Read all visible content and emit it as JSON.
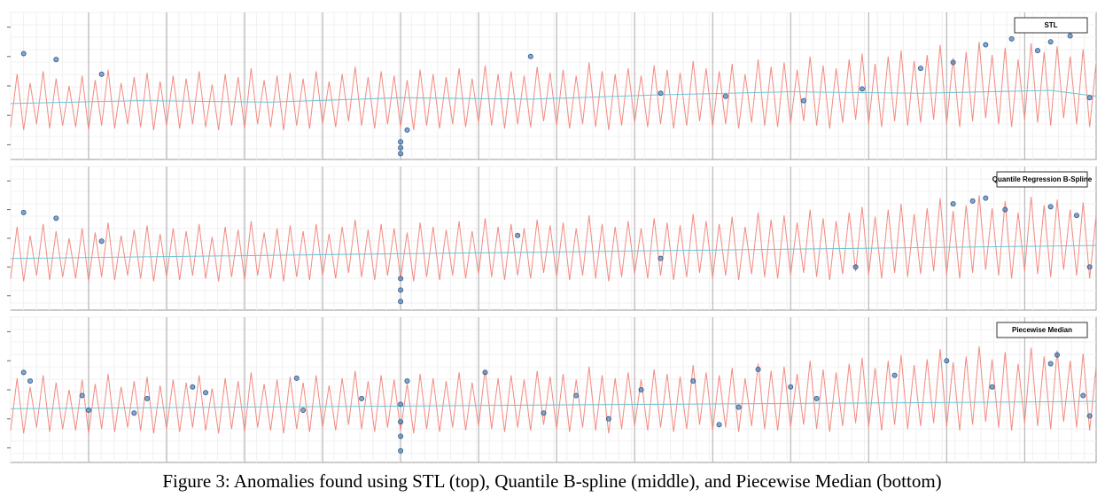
{
  "caption": "Figure 3: Anomalies found using STL (top), Quantile B-spline (middle), and Piecewise Median (bottom)",
  "chart_data": [
    {
      "type": "line",
      "label": "STL",
      "xlim": [
        0,
        167
      ],
      "ylim": [
        0,
        100
      ],
      "xticks": [
        12,
        24,
        36,
        48,
        60,
        72,
        84,
        96,
        108,
        120,
        132,
        144,
        156
      ],
      "yticks": [
        10,
        30,
        50,
        70,
        90
      ],
      "grid": true,
      "series": [
        {
          "color": "#f28b82",
          "values": [
            22,
            58,
            20,
            52,
            24,
            60,
            21,
            55,
            23,
            50,
            22,
            57,
            20,
            54,
            23,
            61,
            21,
            52,
            24,
            56,
            22,
            59,
            20,
            53,
            23,
            57,
            21,
            55,
            24,
            60,
            22,
            51,
            20,
            58,
            23,
            56,
            21,
            62,
            24,
            54,
            22,
            57,
            20,
            59,
            23,
            55,
            21,
            60,
            24,
            53,
            22,
            58,
            26,
            63,
            23,
            56,
            21,
            60,
            24,
            57,
            22,
            54,
            20,
            61,
            23,
            58,
            21,
            56,
            24,
            62,
            22,
            55,
            25,
            64,
            23,
            58,
            21,
            60,
            24,
            57,
            22,
            63,
            26,
            59,
            23,
            61,
            21,
            57,
            24,
            66,
            22,
            60,
            20,
            58,
            23,
            62,
            25,
            57,
            22,
            64,
            24,
            61,
            21,
            59,
            23,
            67,
            26,
            62,
            22,
            60,
            24,
            65,
            21,
            58,
            25,
            68,
            23,
            63,
            22,
            66,
            24,
            61,
            26,
            70,
            23,
            64,
            21,
            62,
            25,
            68,
            27,
            72,
            24,
            65,
            22,
            70,
            26,
            74,
            23,
            67,
            25,
            71,
            27,
            78,
            24,
            69,
            22,
            73,
            26,
            80,
            28,
            71,
            24,
            76,
            22,
            68,
            27,
            79,
            25,
            73,
            23,
            77,
            28,
            70,
            24,
            75,
            22,
            66
          ]
        },
        {
          "color": "#6cc5d6",
          "x": [
            0,
            20,
            40,
            60,
            80,
            100,
            120,
            140,
            160,
            167
          ],
          "values": [
            38,
            40,
            39,
            42,
            41,
            44,
            46,
            45,
            47,
            43
          ]
        },
        {
          "color": "#4f7fb5",
          "type": "scatter",
          "x": [
            2,
            7,
            14,
            61,
            60,
            60,
            60,
            80,
            100,
            110,
            122,
            131,
            140,
            145,
            150,
            154,
            158,
            160,
            163,
            166
          ],
          "values": [
            72,
            68,
            58,
            20,
            12,
            8,
            4,
            70,
            45,
            43,
            40,
            48,
            62,
            66,
            78,
            82,
            74,
            80,
            84,
            42
          ]
        }
      ]
    },
    {
      "type": "line",
      "label": "Quantile Regression B-Spline",
      "xlim": [
        0,
        167
      ],
      "ylim": [
        0,
        100
      ],
      "xticks": [
        12,
        24,
        36,
        48,
        60,
        72,
        84,
        96,
        108,
        120,
        132,
        144,
        156
      ],
      "yticks": [
        10,
        30,
        50,
        70,
        90
      ],
      "grid": true,
      "series": [
        {
          "color": "#f28b82",
          "values": [
            22,
            58,
            20,
            52,
            24,
            60,
            21,
            55,
            23,
            50,
            22,
            57,
            20,
            54,
            23,
            61,
            21,
            52,
            24,
            56,
            22,
            59,
            20,
            53,
            23,
            57,
            21,
            55,
            24,
            60,
            22,
            51,
            20,
            58,
            23,
            56,
            21,
            62,
            24,
            54,
            22,
            57,
            20,
            59,
            23,
            55,
            21,
            60,
            24,
            53,
            22,
            58,
            26,
            63,
            23,
            56,
            21,
            60,
            24,
            57,
            22,
            54,
            20,
            61,
            23,
            58,
            21,
            56,
            24,
            62,
            22,
            55,
            25,
            64,
            23,
            58,
            21,
            60,
            24,
            57,
            22,
            63,
            26,
            59,
            23,
            61,
            21,
            57,
            24,
            66,
            22,
            60,
            20,
            58,
            23,
            62,
            25,
            57,
            22,
            64,
            24,
            61,
            21,
            59,
            23,
            67,
            26,
            62,
            22,
            60,
            24,
            65,
            21,
            58,
            25,
            68,
            23,
            63,
            22,
            66,
            24,
            61,
            26,
            70,
            23,
            64,
            21,
            62,
            25,
            68,
            27,
            72,
            24,
            65,
            22,
            70,
            26,
            74,
            23,
            67,
            25,
            71,
            27,
            78,
            24,
            69,
            22,
            73,
            26,
            80,
            28,
            71,
            24,
            76,
            22,
            68,
            27,
            79,
            25,
            73,
            23,
            77,
            28,
            70,
            24,
            75,
            22,
            66
          ]
        },
        {
          "color": "#6cc5d6",
          "x": [
            0,
            167
          ],
          "values": [
            36,
            45
          ]
        },
        {
          "color": "#4f7fb5",
          "type": "scatter",
          "x": [
            2,
            7,
            14,
            60,
            60,
            60,
            78,
            100,
            130,
            145,
            148,
            150,
            153,
            160,
            164,
            166
          ],
          "values": [
            68,
            64,
            48,
            22,
            14,
            6,
            52,
            36,
            30,
            74,
            76,
            78,
            70,
            72,
            66,
            30
          ]
        }
      ]
    },
    {
      "type": "line",
      "label": "Piecewise Median",
      "xlim": [
        0,
        167
      ],
      "ylim": [
        0,
        100
      ],
      "xticks": [
        12,
        24,
        36,
        48,
        60,
        72,
        84,
        96,
        108,
        120,
        132,
        144,
        156
      ],
      "yticks": [
        10,
        30,
        50,
        70,
        90
      ],
      "grid": true,
      "series": [
        {
          "color": "#f28b82",
          "values": [
            22,
            58,
            20,
            52,
            24,
            60,
            21,
            55,
            23,
            50,
            22,
            57,
            20,
            54,
            23,
            61,
            21,
            52,
            24,
            56,
            22,
            59,
            20,
            53,
            23,
            57,
            21,
            55,
            24,
            60,
            22,
            51,
            20,
            58,
            23,
            56,
            21,
            62,
            24,
            54,
            22,
            57,
            20,
            59,
            23,
            55,
            21,
            60,
            24,
            53,
            22,
            58,
            26,
            63,
            23,
            56,
            21,
            60,
            24,
            57,
            22,
            54,
            20,
            61,
            23,
            58,
            21,
            56,
            24,
            62,
            22,
            55,
            25,
            64,
            23,
            58,
            21,
            60,
            24,
            57,
            22,
            63,
            26,
            59,
            23,
            61,
            21,
            57,
            24,
            66,
            22,
            60,
            20,
            58,
            23,
            62,
            25,
            57,
            22,
            64,
            24,
            61,
            21,
            59,
            23,
            67,
            26,
            62,
            22,
            60,
            24,
            65,
            21,
            58,
            25,
            68,
            23,
            63,
            22,
            66,
            24,
            61,
            26,
            70,
            23,
            64,
            21,
            62,
            25,
            68,
            27,
            72,
            24,
            65,
            22,
            70,
            26,
            74,
            23,
            67,
            25,
            71,
            27,
            78,
            24,
            69,
            22,
            73,
            26,
            80,
            28,
            71,
            24,
            76,
            22,
            68,
            27,
            79,
            25,
            73,
            23,
            77,
            28,
            70,
            24,
            75,
            22,
            66
          ]
        },
        {
          "color": "#6cc5d6",
          "x": [
            0,
            167
          ],
          "values": [
            37,
            42
          ]
        },
        {
          "color": "#4f7fb5",
          "type": "scatter",
          "x": [
            2,
            3,
            11,
            12,
            19,
            21,
            28,
            30,
            44,
            45,
            54,
            60,
            60,
            60,
            60,
            61,
            73,
            82,
            87,
            92,
            97,
            105,
            109,
            112,
            115,
            120,
            124,
            136,
            144,
            151,
            160,
            161,
            165,
            166
          ],
          "values": [
            62,
            56,
            46,
            36,
            34,
            44,
            52,
            48,
            58,
            36,
            44,
            40,
            28,
            18,
            8,
            56,
            62,
            34,
            46,
            30,
            50,
            56,
            26,
            38,
            64,
            52,
            44,
            60,
            70,
            52,
            68,
            74,
            46,
            32
          ]
        }
      ]
    }
  ]
}
